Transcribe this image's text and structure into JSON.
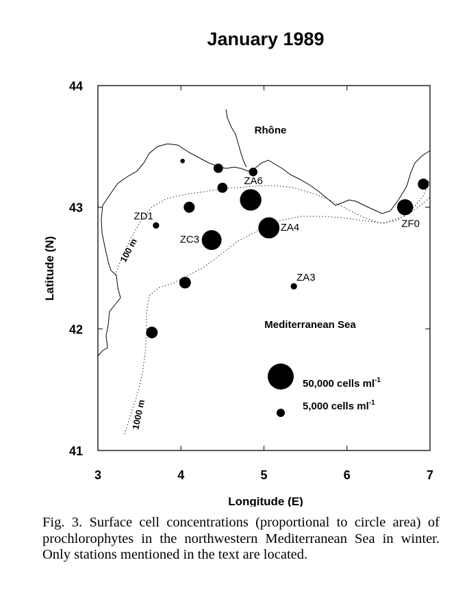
{
  "title": "January 1989",
  "map": {
    "x_axis": {
      "label": "Longitude (E)",
      "min": 3,
      "max": 7,
      "ticks": [
        "3",
        "4",
        "5",
        "6",
        "7"
      ]
    },
    "y_axis": {
      "label": "Latitude (N)",
      "min": 41,
      "max": 44,
      "ticks": [
        "41",
        "42",
        "43",
        "44"
      ]
    },
    "labels": {
      "river": "Rhône",
      "sea": "Mediterranean Sea",
      "isobath_100": "100 m",
      "isobath_1000": "1000 m"
    },
    "stations": [
      {
        "name": "ZD1",
        "lon": 3.7,
        "lat": 42.85,
        "cells": 3000
      },
      {
        "name": "ZC3",
        "lon": 4.37,
        "lat": 42.73,
        "cells": 29000
      },
      {
        "name": "ZA6",
        "lon": 4.84,
        "lat": 43.06,
        "cells": 34000
      },
      {
        "name": "ZA4",
        "lon": 5.06,
        "lat": 42.83,
        "cells": 33000
      },
      {
        "name": "ZA3",
        "lon": 5.36,
        "lat": 42.35,
        "cells": 3000
      },
      {
        "name": "ZF0",
        "lon": 6.7,
        "lat": 43.0,
        "cells": 19000
      }
    ],
    "unlabeled_stations": [
      {
        "lon": 4.02,
        "lat": 43.38,
        "cells": 1500
      },
      {
        "lon": 4.45,
        "lat": 43.32,
        "cells": 6500
      },
      {
        "lon": 4.87,
        "lat": 43.29,
        "cells": 5500
      },
      {
        "lon": 4.5,
        "lat": 43.16,
        "cells": 7500
      },
      {
        "lon": 4.1,
        "lat": 43.0,
        "cells": 9000
      },
      {
        "lon": 4.05,
        "lat": 42.38,
        "cells": 10000
      },
      {
        "lon": 3.65,
        "lat": 41.97,
        "cells": 10000
      },
      {
        "lon": 6.92,
        "lat": 43.19,
        "cells": 9000
      }
    ],
    "legend": [
      {
        "value": 50000,
        "label": "50,000 cells ml",
        "sup": "-1"
      },
      {
        "value": 5000,
        "label": "5,000   cells ml",
        "sup": "-1"
      }
    ]
  },
  "caption": "Fig. 3.   Surface cell concentrations (proportional to circle area) of prochlorophytes in the northwestern Mediterranean Sea in winter. Only stations mentioned in the text are located."
}
